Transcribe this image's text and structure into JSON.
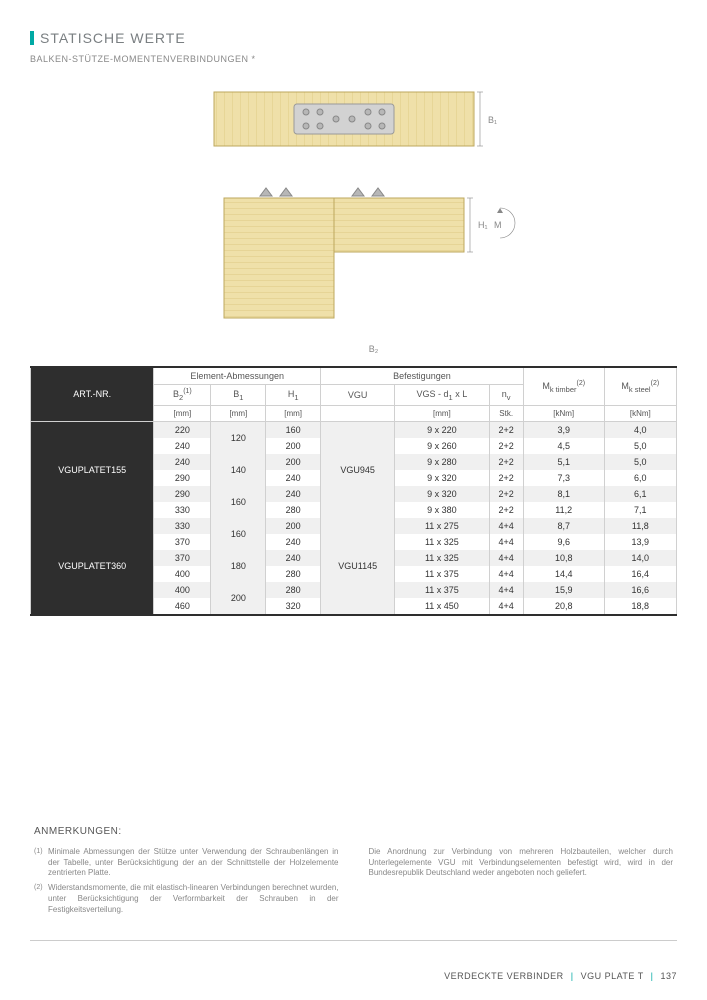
{
  "title": "STATISCHE WERTE",
  "subtitle": "BALKEN-STÜTZE-MOMENTENVERBINDUNGEN *",
  "diagram_labels": {
    "b1": "B₁",
    "b2": "B₂",
    "h1": "H₁",
    "m": "M"
  },
  "table": {
    "headers": {
      "art": "ART.-NR.",
      "dims": "Element-Abmessungen",
      "fast": "Befestigungen",
      "mk_t": "M<sub>k timber</sub><sup class='small'>(2)</sup>",
      "mk_s": "M<sub>k steel</sub><sup class='small'>(2)</sup>",
      "b2": "B<sub>2</sub><sup class='small'>(1)</sup>",
      "b1": "B<sub>1</sub>",
      "h1": "H<sub>1</sub>",
      "vgu": "VGU",
      "vgs": "VGS - d<sub>1</sub> x L",
      "nv": "n<sub>v</sub>"
    },
    "units": {
      "mm": "[mm]",
      "stk": "Stk.",
      "knm": "[kNm]"
    },
    "groups": [
      {
        "art": "VGUPLATET155",
        "vgu": "VGU945",
        "rows": [
          {
            "b2": "220",
            "b1": "120",
            "h1": "160",
            "vgs": "9 x 220",
            "nv": "2+2",
            "mkt": "3,9",
            "mks": "4,0",
            "shade": true
          },
          {
            "b2": "240",
            "b1": "",
            "h1": "200",
            "vgs": "9 x 260",
            "nv": "2+2",
            "mkt": "4,5",
            "mks": "5,0",
            "shade": false
          },
          {
            "b2": "240",
            "b1": "140",
            "h1": "200",
            "vgs": "9 x 280",
            "nv": "2+2",
            "mkt": "5,1",
            "mks": "5,0",
            "shade": true
          },
          {
            "b2": "290",
            "b1": "",
            "h1": "240",
            "vgs": "9 x 320",
            "nv": "2+2",
            "mkt": "7,3",
            "mks": "6,0",
            "shade": false
          },
          {
            "b2": "290",
            "b1": "160",
            "h1": "240",
            "vgs": "9 x 320",
            "nv": "2+2",
            "mkt": "8,1",
            "mks": "6,1",
            "shade": true
          },
          {
            "b2": "330",
            "b1": "",
            "h1": "280",
            "vgs": "9 x 380",
            "nv": "2+2",
            "mkt": "11,2",
            "mks": "7,1",
            "shade": false
          }
        ]
      },
      {
        "art": "VGUPLATET360",
        "vgu": "VGU1145",
        "rows": [
          {
            "b2": "330",
            "b1": "160",
            "h1": "200",
            "vgs": "11 x 275",
            "nv": "4+4",
            "mkt": "8,7",
            "mks": "11,8",
            "shade": true
          },
          {
            "b2": "370",
            "b1": "",
            "h1": "240",
            "vgs": "11 x 325",
            "nv": "4+4",
            "mkt": "9,6",
            "mks": "13,9",
            "shade": false
          },
          {
            "b2": "370",
            "b1": "180",
            "h1": "240",
            "vgs": "11 x 325",
            "nv": "4+4",
            "mkt": "10,8",
            "mks": "14,0",
            "shade": true
          },
          {
            "b2": "400",
            "b1": "",
            "h1": "280",
            "vgs": "11 x 375",
            "nv": "4+4",
            "mkt": "14,4",
            "mks": "16,4",
            "shade": false
          },
          {
            "b2": "400",
            "b1": "200",
            "h1": "280",
            "vgs": "11 x 375",
            "nv": "4+4",
            "mkt": "15,9",
            "mks": "16,6",
            "shade": true
          },
          {
            "b2": "460",
            "b1": "",
            "h1": "320",
            "vgs": "11 x 450",
            "nv": "4+4",
            "mkt": "20,8",
            "mks": "18,8",
            "shade": false
          }
        ]
      }
    ]
  },
  "notes": {
    "title": "ANMERKUNGEN:",
    "left": [
      {
        "n": "(1)",
        "t": "Minimale Abmessungen der Stütze unter Verwendung der Schraubenlängen in der Tabelle, unter Berücksichtigung der an der Schnittstelle der Holzelemente zentrierten Platte."
      },
      {
        "n": "(2)",
        "t": "Widerstandsmomente, die mit elastisch-linearen Verbindungen berechnet wurden, unter Berücksichtigung der Verformbarkeit der Schrauben in der Festigkeitsverteilung."
      }
    ],
    "right": "Die Anordnung zur Verbindung von mehreren Holzbauteilen, welcher durch Unterlegelemente VGU mit Verbindungselementen befestigt wird, wird in der Bundesrepublik Deutschland weder angeboten noch geliefert."
  },
  "footer": {
    "cat": "VERDECKTE VERBINDER",
    "prod": "VGU PLATE T",
    "page": "137"
  },
  "colors": {
    "accent": "#00a9a4",
    "wood_light": "#efe0a9",
    "wood_dark": "#d9c276",
    "plate": "#d2d2d2",
    "screw": "#b7b7b7",
    "row_shade": "#f0f0f0",
    "header_dark": "#2e2e2e"
  }
}
